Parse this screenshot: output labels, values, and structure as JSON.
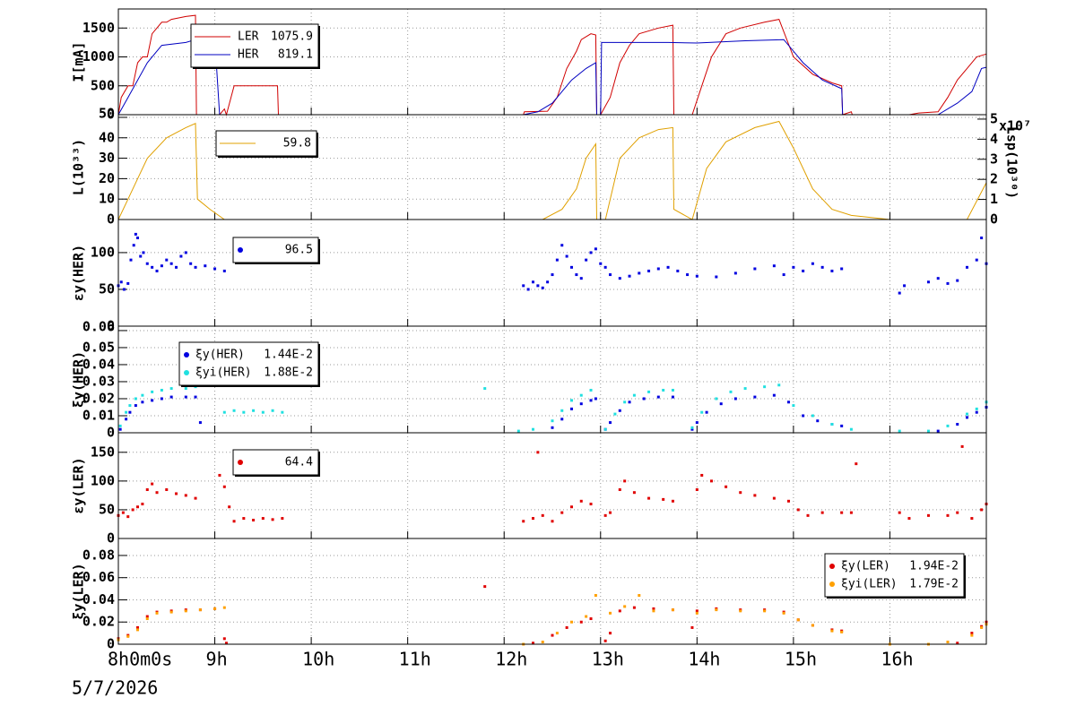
{
  "chart_data": [
    {
      "type": "line",
      "ylabel": "I[mA]",
      "xlim": [
        8,
        17
      ],
      "ylim": [
        0,
        1830
      ],
      "yticks": [
        0,
        500,
        1000,
        1500
      ],
      "grid": true,
      "series": [
        {
          "name": "LER",
          "legend_value": "1075.9",
          "color": "#d00000",
          "x": [
            8.0,
            8.03,
            8.1,
            8.15,
            8.2,
            8.25,
            8.3,
            8.35,
            8.45,
            8.5,
            8.55,
            8.7,
            8.8,
            8.81,
            9.05,
            9.1,
            9.12,
            9.2,
            9.65,
            9.66,
            12.2,
            12.21,
            12.45,
            12.55,
            12.65,
            12.75,
            12.8,
            12.9,
            12.95,
            12.96,
            13.0,
            13.1,
            13.2,
            13.3,
            13.4,
            13.6,
            13.75,
            13.76,
            13.95,
            14.05,
            14.15,
            14.3,
            14.45,
            14.7,
            14.85,
            15.0,
            15.2,
            15.4,
            15.5,
            15.51,
            15.6,
            15.61,
            16.2,
            16.3,
            16.5,
            16.6,
            16.7,
            16.8,
            16.9,
            17.0
          ],
          "values": [
            0,
            300,
            500,
            500,
            900,
            1000,
            1000,
            1400,
            1600,
            1600,
            1650,
            1700,
            1720,
            0,
            0,
            100,
            0,
            500,
            500,
            0,
            0,
            50,
            60,
            300,
            800,
            1100,
            1300,
            1400,
            1380,
            0,
            0,
            300,
            900,
            1200,
            1400,
            1500,
            1550,
            0,
            0,
            500,
            1000,
            1400,
            1500,
            1600,
            1650,
            1000,
            700,
            550,
            500,
            0,
            50,
            0,
            0,
            30,
            50,
            300,
            600,
            800,
            1000,
            1050
          ]
        },
        {
          "name": "HER",
          "legend_value": "819.1",
          "color": "#0000c0",
          "x": [
            8.0,
            8.1,
            8.3,
            8.4,
            8.45,
            8.7,
            8.8,
            9.0,
            9.05,
            12.2,
            12.35,
            12.5,
            12.7,
            12.85,
            12.95,
            12.96,
            13.0,
            13.01,
            13.2,
            13.7,
            14.0,
            14.5,
            14.9,
            15.1,
            15.3,
            15.5,
            15.51,
            16.5,
            16.7,
            16.85,
            16.95,
            17.0
          ],
          "values": [
            0,
            300,
            900,
            1100,
            1200,
            1250,
            1300,
            1300,
            0,
            0,
            50,
            200,
            600,
            800,
            900,
            0,
            0,
            1250,
            1250,
            1250,
            1240,
            1280,
            1300,
            900,
            600,
            450,
            0,
            0,
            200,
            400,
            800,
            820
          ]
        }
      ]
    },
    {
      "type": "line",
      "ylabel": "L(10³³)",
      "y2label": "Lsp(10³⁰)",
      "y2_multiplier": "x10⁷",
      "xlim": [
        8,
        17
      ],
      "ylim": [
        0,
        51.3
      ],
      "yticks": [
        0,
        10,
        20,
        30,
        40,
        50
      ],
      "y2lim": [
        0,
        52200000
      ],
      "y2ticks": [
        0,
        {
          "value": 10000000,
          "label": "1"
        },
        {
          "value": 20000000,
          "label": "2"
        },
        {
          "value": 30000000,
          "label": "3"
        },
        {
          "value": 40000000,
          "label": "4"
        },
        {
          "value": 50000000,
          "label": "5"
        }
      ],
      "grid": true,
      "series": [
        {
          "legend_value": "59.8",
          "color": "#e0a000",
          "x": [
            8.0,
            8.1,
            8.2,
            8.3,
            8.5,
            8.7,
            8.8,
            8.82,
            8.95,
            9.1,
            12.4,
            12.6,
            12.75,
            12.85,
            12.95,
            12.96,
            13.05,
            13.2,
            13.4,
            13.6,
            13.75,
            13.76,
            13.95,
            14.1,
            14.3,
            14.6,
            14.85,
            15.0,
            15.2,
            15.4,
            15.6,
            16.0,
            16.8,
            17.0
          ],
          "values": [
            0,
            10,
            20,
            30,
            40,
            45,
            47,
            10,
            5,
            0,
            0,
            5,
            15,
            30,
            37,
            0,
            0,
            30,
            40,
            44,
            45,
            5,
            0,
            25,
            38,
            45,
            48,
            35,
            15,
            5,
            2,
            0,
            0,
            18
          ]
        }
      ]
    },
    {
      "type": "scatter",
      "ylabel": "εy(HER)",
      "xlim": [
        8,
        17
      ],
      "ylim": [
        0,
        145
      ],
      "yticks": [
        0,
        50,
        100
      ],
      "grid": true,
      "series": [
        {
          "legend_value": "96.5",
          "color": "#0000e0",
          "x": [
            8.0,
            8.03,
            8.06,
            8.1,
            8.13,
            8.16,
            8.18,
            8.2,
            8.23,
            8.26,
            8.3,
            8.35,
            8.4,
            8.45,
            8.5,
            8.55,
            8.6,
            8.65,
            8.7,
            8.75,
            8.8,
            8.9,
            9.0,
            9.1,
            12.2,
            12.25,
            12.3,
            12.35,
            12.4,
            12.45,
            12.5,
            12.55,
            12.6,
            12.65,
            12.7,
            12.75,
            12.8,
            12.85,
            12.9,
            12.95,
            13.0,
            13.05,
            13.1,
            13.2,
            13.3,
            13.4,
            13.5,
            13.6,
            13.7,
            13.8,
            13.9,
            14.0,
            14.2,
            14.4,
            14.6,
            14.8,
            14.9,
            15.0,
            15.1,
            15.2,
            15.3,
            15.4,
            15.5,
            16.1,
            16.15,
            16.4,
            16.5,
            16.6,
            16.7,
            16.8,
            16.9,
            16.95,
            17.0
          ],
          "values": [
            55,
            60,
            50,
            58,
            90,
            110,
            125,
            120,
            95,
            100,
            85,
            80,
            75,
            82,
            90,
            85,
            80,
            95,
            100,
            85,
            80,
            82,
            78,
            75,
            55,
            50,
            60,
            55,
            52,
            60,
            70,
            90,
            110,
            95,
            80,
            70,
            65,
            90,
            100,
            105,
            85,
            80,
            70,
            65,
            68,
            72,
            75,
            78,
            80,
            75,
            70,
            68,
            67,
            72,
            78,
            82,
            70,
            80,
            75,
            85,
            80,
            75,
            78,
            45,
            55,
            60,
            65,
            58,
            62,
            80,
            90,
            120,
            85
          ]
        }
      ]
    },
    {
      "type": "scatter",
      "ylabel": "ξy(HER)",
      "xlim": [
        8,
        17
      ],
      "ylim": [
        0,
        0.0626
      ],
      "yticks": [
        0,
        0.01,
        0.02,
        0.03,
        0.04,
        0.05,
        0.06
      ],
      "grid": true,
      "series": [
        {
          "name": "ξy(HER)",
          "legend_value": "1.44E-2",
          "color": "#0000e0",
          "x": [
            8.02,
            8.08,
            8.12,
            8.18,
            8.25,
            8.35,
            8.45,
            8.55,
            8.7,
            8.8,
            8.85,
            12.5,
            12.6,
            12.7,
            12.8,
            12.9,
            12.95,
            13.05,
            13.1,
            13.2,
            13.3,
            13.45,
            13.6,
            13.75,
            13.95,
            14.0,
            14.1,
            14.25,
            14.4,
            14.6,
            14.8,
            14.95,
            15.1,
            15.25,
            15.4,
            15.5,
            16.5,
            16.7,
            16.8,
            16.9,
            17.0
          ],
          "values": [
            0.002,
            0.008,
            0.012,
            0.016,
            0.018,
            0.019,
            0.02,
            0.021,
            0.021,
            0.021,
            0.006,
            0.003,
            0.008,
            0.014,
            0.017,
            0.019,
            0.02,
            0.002,
            0.006,
            0.013,
            0.018,
            0.02,
            0.021,
            0.021,
            0.002,
            0.006,
            0.012,
            0.017,
            0.02,
            0.021,
            0.022,
            0.018,
            0.01,
            0.007,
            0.005,
            0.004,
            0.001,
            0.005,
            0.009,
            0.012,
            0.015
          ]
        },
        {
          "name": "ξyi(HER)",
          "legend_value": "1.88E-2",
          "color": "#20e0e0",
          "x": [
            8.02,
            8.08,
            8.12,
            8.18,
            8.25,
            8.35,
            8.45,
            8.55,
            8.7,
            8.8,
            9.1,
            9.2,
            9.3,
            9.4,
            9.5,
            9.6,
            9.7,
            11.8,
            12.15,
            12.3,
            12.5,
            12.6,
            12.7,
            12.8,
            12.9,
            13.05,
            13.15,
            13.25,
            13.35,
            13.5,
            13.65,
            13.75,
            13.95,
            14.05,
            14.2,
            14.35,
            14.5,
            14.7,
            14.85,
            15.0,
            15.2,
            15.4,
            15.6,
            16.1,
            16.4,
            16.6,
            16.8,
            16.9,
            17.0
          ],
          "values": [
            0.004,
            0.012,
            0.016,
            0.02,
            0.022,
            0.024,
            0.025,
            0.026,
            0.026,
            0.027,
            0.012,
            0.013,
            0.012,
            0.013,
            0.012,
            0.013,
            0.012,
            0.026,
            0.001,
            0.002,
            0.007,
            0.013,
            0.019,
            0.022,
            0.025,
            0.002,
            0.011,
            0.018,
            0.022,
            0.024,
            0.025,
            0.025,
            0.003,
            0.012,
            0.02,
            0.024,
            0.026,
            0.027,
            0.028,
            0.016,
            0.01,
            0.005,
            0.002,
            0.001,
            0.001,
            0.004,
            0.011,
            0.014,
            0.018
          ]
        }
      ]
    },
    {
      "type": "scatter",
      "ylabel": "εy(LER)",
      "xlim": [
        8,
        17
      ],
      "ylim": [
        0,
        184
      ],
      "yticks": [
        0,
        50,
        100,
        150
      ],
      "grid": true,
      "series": [
        {
          "legend_value": "64.4",
          "color": "#e00000",
          "x": [
            8.0,
            8.05,
            8.1,
            8.15,
            8.2,
            8.25,
            8.3,
            8.35,
            8.4,
            8.5,
            8.6,
            8.7,
            8.8,
            9.05,
            9.1,
            9.15,
            9.2,
            9.3,
            9.4,
            9.5,
            9.6,
            9.7,
            12.2,
            12.3,
            12.35,
            12.4,
            12.5,
            12.6,
            12.7,
            12.8,
            12.9,
            13.05,
            13.1,
            13.2,
            13.25,
            13.35,
            13.5,
            13.65,
            13.75,
            14.0,
            14.05,
            14.15,
            14.3,
            14.45,
            14.6,
            14.8,
            14.95,
            15.05,
            15.15,
            15.3,
            15.5,
            15.6,
            15.65,
            16.1,
            16.2,
            16.4,
            16.6,
            16.7,
            16.75,
            16.85,
            16.95,
            17.0
          ],
          "values": [
            40,
            45,
            38,
            50,
            55,
            60,
            85,
            95,
            80,
            85,
            78,
            75,
            70,
            110,
            90,
            55,
            30,
            35,
            32,
            35,
            33,
            35,
            30,
            35,
            150,
            40,
            30,
            45,
            55,
            65,
            60,
            40,
            45,
            85,
            100,
            80,
            70,
            68,
            65,
            85,
            110,
            100,
            90,
            80,
            75,
            70,
            65,
            50,
            40,
            45,
            45,
            45,
            130,
            45,
            35,
            40,
            40,
            45,
            160,
            35,
            50,
            60
          ]
        }
      ]
    },
    {
      "type": "scatter",
      "ylabel": "ξy(LER)",
      "xlim": [
        8,
        17
      ],
      "ylim": [
        0,
        0.0953
      ],
      "yticks": [
        0,
        0.02,
        0.04,
        0.06,
        0.08
      ],
      "grid": true,
      "xticks": [
        {
          "value": 8,
          "label": "8h0m0s"
        },
        {
          "value": 9,
          "label": "9h"
        },
        {
          "value": 10,
          "label": "10h"
        },
        {
          "value": 11,
          "label": "11h"
        },
        {
          "value": 12,
          "label": "12h"
        },
        {
          "value": 13,
          "label": "13h"
        },
        {
          "value": 14,
          "label": "14h"
        },
        {
          "value": 15,
          "label": "15h"
        },
        {
          "value": 16,
          "label": "16h"
        }
      ],
      "date": "5/7/2026",
      "series": [
        {
          "name": "ξy(LER)",
          "legend_value": "1.94E-2",
          "color": "#e00000",
          "x": [
            8.0,
            8.1,
            8.2,
            8.3,
            8.4,
            8.55,
            8.7,
            8.85,
            9.0,
            9.1,
            9.12,
            11.8,
            12.3,
            12.5,
            12.65,
            12.8,
            12.9,
            13.05,
            13.1,
            13.2,
            13.35,
            13.55,
            13.75,
            13.95,
            14.0,
            14.2,
            14.45,
            14.7,
            14.9,
            15.05,
            15.2,
            15.4,
            15.5,
            16.7,
            16.85,
            16.95,
            17.0
          ],
          "values": [
            0.005,
            0.008,
            0.015,
            0.025,
            0.029,
            0.03,
            0.031,
            0.031,
            0.032,
            0.005,
            0.001,
            0.052,
            0.001,
            0.008,
            0.015,
            0.02,
            0.023,
            0.003,
            0.01,
            0.03,
            0.033,
            0.032,
            0.031,
            0.015,
            0.03,
            0.032,
            0.031,
            0.031,
            0.029,
            0.022,
            0.017,
            0.013,
            0.012,
            0.001,
            0.01,
            0.016,
            0.02
          ]
        },
        {
          "name": "ξyi(LER)",
          "legend_value": "1.79E-2",
          "color": "#ffa000",
          "x": [
            8.0,
            8.1,
            8.2,
            8.3,
            8.4,
            8.55,
            8.7,
            8.85,
            9.0,
            9.1,
            12.2,
            12.4,
            12.55,
            12.7,
            12.85,
            12.95,
            13.1,
            13.25,
            13.4,
            13.55,
            13.75,
            14.0,
            14.2,
            14.45,
            14.7,
            14.9,
            15.05,
            15.2,
            15.4,
            15.5,
            16.0,
            16.4,
            16.6,
            16.85,
            16.95,
            17.0
          ],
          "values": [
            0.004,
            0.007,
            0.013,
            0.023,
            0.028,
            0.029,
            0.03,
            0.031,
            0.032,
            0.033,
            0.0,
            0.002,
            0.01,
            0.02,
            0.025,
            0.044,
            0.028,
            0.034,
            0.044,
            0.03,
            0.031,
            0.028,
            0.031,
            0.03,
            0.03,
            0.028,
            0.022,
            0.017,
            0.012,
            0.011,
            0.0,
            0.0,
            0.002,
            0.008,
            0.015,
            0.018
          ]
        }
      ]
    }
  ]
}
